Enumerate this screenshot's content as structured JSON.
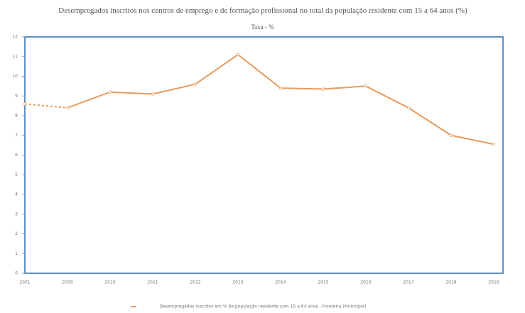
{
  "chart_data": {
    "type": "line",
    "title": "Desempregados inscritos nos centros de emprego e de formação profissional no total da população residente com 15 a 64 anos (%)",
    "subtitle": "Taxa - %",
    "categories": [
      "2001",
      "2009",
      "2010",
      "2011",
      "2012",
      "2013",
      "2014",
      "2015",
      "2016",
      "2017",
      "2018",
      "2019"
    ],
    "series": [
      {
        "name": "Desempregados inscritos em % da população residente com 15 a 64 anos - Fronteira (Município)",
        "color": "#e89a5c",
        "values": [
          8.6,
          8.4,
          9.2,
          9.1,
          9.6,
          11.1,
          9.4,
          9.35,
          9.5,
          8.4,
          7.0,
          6.55
        ]
      }
    ],
    "ylim": [
      0,
      12
    ],
    "yticks": [
      0,
      1,
      2,
      3,
      4,
      5,
      6,
      7,
      8,
      9,
      10,
      11,
      12
    ]
  }
}
